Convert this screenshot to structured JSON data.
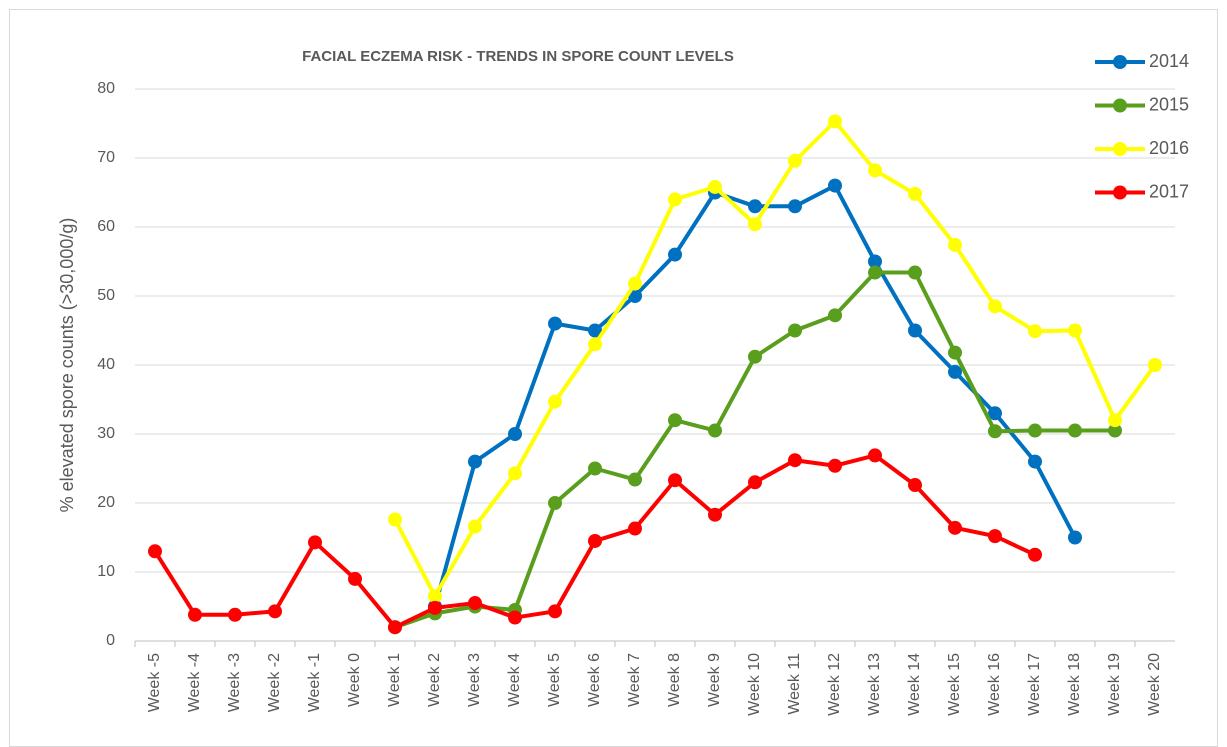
{
  "chart_data": {
    "type": "line",
    "title": "FACIAL ECZEMA RISK - TRENDS IN SPORE COUNT LEVELS",
    "y_label": "% elevated spore counts (>30,000/g)",
    "categories": [
      "Week -5",
      "Week -4",
      "Week -3",
      "Week -2",
      "Week -1",
      "Week 0",
      "Week 1",
      "Week 2",
      "Week 3",
      "Week 4",
      "Week 5",
      "Week 6",
      "Week 7",
      "Week 8",
      "Week 9",
      "Week 10",
      "Week 11",
      "Week 12",
      "Week 13",
      "Week 14",
      "Week 15",
      "Week 16",
      "Week 17",
      "Week 18",
      "Week 19",
      "Week 20"
    ],
    "series": [
      {
        "name": "2014",
        "color": "#0070c0",
        "values": [
          null,
          null,
          null,
          null,
          null,
          null,
          null,
          5,
          26,
          30,
          46,
          45,
          50,
          56,
          65,
          63,
          63,
          66,
          55,
          45,
          39,
          33,
          26,
          15,
          null,
          null
        ]
      },
      {
        "name": "2015",
        "color": "#5a9e1e",
        "values": [
          null,
          null,
          null,
          null,
          null,
          null,
          2,
          4,
          5,
          4.5,
          20,
          25,
          23.4,
          32,
          30.5,
          41.2,
          45,
          47.2,
          53.4,
          53.4,
          41.8,
          30.4,
          30.5,
          30.5,
          30.5,
          null
        ]
      },
      {
        "name": "2016",
        "color": "#ffff00",
        "values": [
          null,
          null,
          null,
          null,
          null,
          null,
          17.6,
          6.5,
          16.6,
          24.3,
          34.7,
          43,
          51.8,
          64,
          65.8,
          60.4,
          69.6,
          75.3,
          68.2,
          64.8,
          57.4,
          48.5,
          44.9,
          45,
          32,
          40
        ]
      },
      {
        "name": "2017",
        "color": "#ff0000",
        "values": [
          13,
          3.8,
          3.8,
          4.3,
          14.3,
          9,
          2,
          4.8,
          5.5,
          3.4,
          4.3,
          14.5,
          16.3,
          23.3,
          18.3,
          23,
          26.2,
          25.4,
          26.9,
          22.6,
          16.4,
          15.2,
          12.5,
          null,
          null,
          null
        ]
      }
    ],
    "ylim": [
      0,
      80
    ],
    "yticks": [
      0,
      10,
      20,
      30,
      40,
      50,
      60,
      70,
      80
    ],
    "grid": true,
    "legend": "top-right"
  }
}
